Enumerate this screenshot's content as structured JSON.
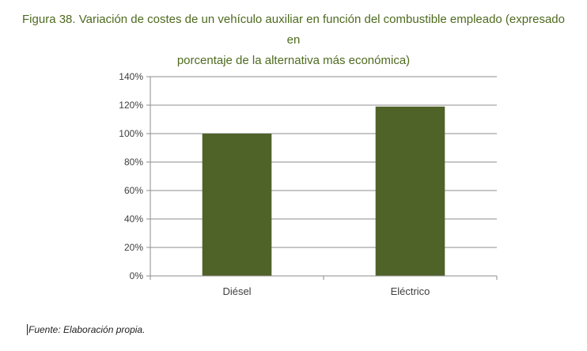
{
  "figure": {
    "caption_line1": "Figura 38. Variación de costes de un vehículo auxiliar en función del combustible empleado (expresado en",
    "caption_line2": "porcentaje de la alternativa más económica)",
    "source": "Fuente: Elaboración propia."
  },
  "chart_data": {
    "type": "bar",
    "categories": [
      "Diésel",
      "Eléctrico"
    ],
    "values": [
      100,
      119
    ],
    "value_unit": "%",
    "ylim": [
      0,
      140
    ],
    "y_ticks": [
      0,
      20,
      40,
      60,
      80,
      100,
      120,
      140
    ],
    "y_tick_labels": [
      "0%",
      "20%",
      "40%",
      "60%",
      "80%",
      "100%",
      "120%",
      "140%"
    ],
    "grid": true,
    "legend": "none",
    "colors": {
      "bar": "#4f6228",
      "grid": "#8c8c8c",
      "axis": "#8c8c8c",
      "caption": "#4e6a1f"
    }
  }
}
